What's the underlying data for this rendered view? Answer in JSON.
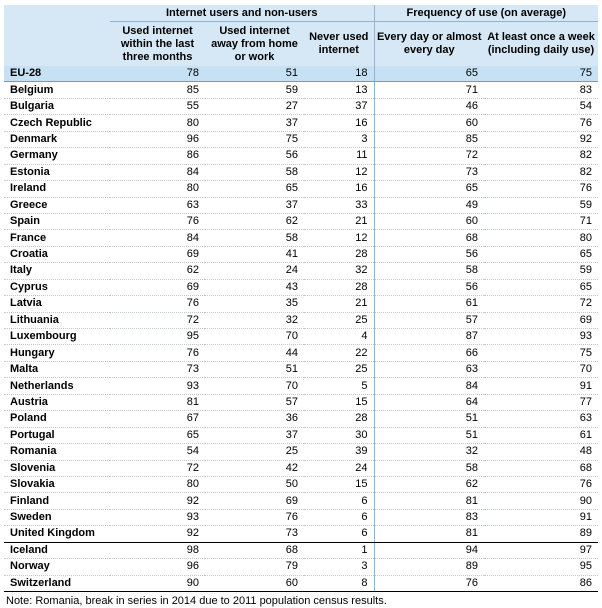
{
  "header": {
    "group1": "Internet users and non-users",
    "group2": "Frequency of use (on average)",
    "columns": [
      "Used internet within the last three months",
      "Used internet away from home or work",
      "Never used internet",
      "Every day or almost every day",
      "At least once a week (including daily use)"
    ]
  },
  "eu_row": {
    "country": "EU-28",
    "values": [
      "78",
      "51",
      "18",
      "65",
      "75"
    ]
  },
  "rows": [
    {
      "country": "Belgium",
      "values": [
        "85",
        "59",
        "13",
        "71",
        "83"
      ]
    },
    {
      "country": "Bulgaria",
      "values": [
        "55",
        "27",
        "37",
        "46",
        "54"
      ]
    },
    {
      "country": "Czech Republic",
      "values": [
        "80",
        "37",
        "16",
        "60",
        "76"
      ]
    },
    {
      "country": "Denmark",
      "values": [
        "96",
        "75",
        "3",
        "85",
        "92"
      ]
    },
    {
      "country": "Germany",
      "values": [
        "86",
        "56",
        "11",
        "72",
        "82"
      ]
    },
    {
      "country": "Estonia",
      "values": [
        "84",
        "58",
        "12",
        "73",
        "82"
      ]
    },
    {
      "country": "Ireland",
      "values": [
        "80",
        "65",
        "16",
        "65",
        "76"
      ]
    },
    {
      "country": "Greece",
      "values": [
        "63",
        "37",
        "33",
        "49",
        "59"
      ]
    },
    {
      "country": "Spain",
      "values": [
        "76",
        "62",
        "21",
        "60",
        "71"
      ]
    },
    {
      "country": "France",
      "values": [
        "84",
        "58",
        "12",
        "68",
        "80"
      ]
    },
    {
      "country": "Croatia",
      "values": [
        "69",
        "41",
        "28",
        "56",
        "65"
      ]
    },
    {
      "country": "Italy",
      "values": [
        "62",
        "24",
        "32",
        "58",
        "59"
      ]
    },
    {
      "country": "Cyprus",
      "values": [
        "69",
        "43",
        "28",
        "56",
        "65"
      ]
    },
    {
      "country": "Latvia",
      "values": [
        "76",
        "35",
        "21",
        "61",
        "72"
      ]
    },
    {
      "country": "Lithuania",
      "values": [
        "72",
        "32",
        "25",
        "57",
        "69"
      ]
    },
    {
      "country": "Luxembourg",
      "values": [
        "95",
        "70",
        "4",
        "87",
        "93"
      ]
    },
    {
      "country": "Hungary",
      "values": [
        "76",
        "44",
        "22",
        "66",
        "75"
      ]
    },
    {
      "country": "Malta",
      "values": [
        "73",
        "51",
        "25",
        "63",
        "70"
      ]
    },
    {
      "country": "Netherlands",
      "values": [
        "93",
        "70",
        "5",
        "84",
        "91"
      ]
    },
    {
      "country": "Austria",
      "values": [
        "81",
        "57",
        "15",
        "64",
        "77"
      ]
    },
    {
      "country": "Poland",
      "values": [
        "67",
        "36",
        "28",
        "51",
        "63"
      ]
    },
    {
      "country": "Portugal",
      "values": [
        "65",
        "37",
        "30",
        "51",
        "61"
      ]
    },
    {
      "country": "Romania",
      "values": [
        "54",
        "25",
        "39",
        "32",
        "48"
      ]
    },
    {
      "country": "Slovenia",
      "values": [
        "72",
        "42",
        "24",
        "58",
        "68"
      ]
    },
    {
      "country": "Slovakia",
      "values": [
        "80",
        "50",
        "15",
        "62",
        "76"
      ]
    },
    {
      "country": "Finland",
      "values": [
        "92",
        "69",
        "6",
        "81",
        "90"
      ]
    },
    {
      "country": "Sweden",
      "values": [
        "93",
        "76",
        "6",
        "83",
        "91"
      ]
    },
    {
      "country": "United Kingdom",
      "values": [
        "92",
        "73",
        "6",
        "81",
        "89"
      ]
    }
  ],
  "efta_rows": [
    {
      "country": "Iceland",
      "values": [
        "98",
        "68",
        "1",
        "94",
        "97"
      ]
    },
    {
      "country": "Norway",
      "values": [
        "96",
        "79",
        "3",
        "89",
        "95"
      ]
    },
    {
      "country": "Switzerland",
      "values": [
        "90",
        "60",
        "8",
        "76",
        "86"
      ]
    }
  ],
  "note": "Note: Romania, break in series in 2014 due to 2011 population census results.",
  "colors": {
    "header_bg": "#d6e8f5",
    "eu_row_bg": "#c5e1f3",
    "divider": "#8fb3d1"
  }
}
